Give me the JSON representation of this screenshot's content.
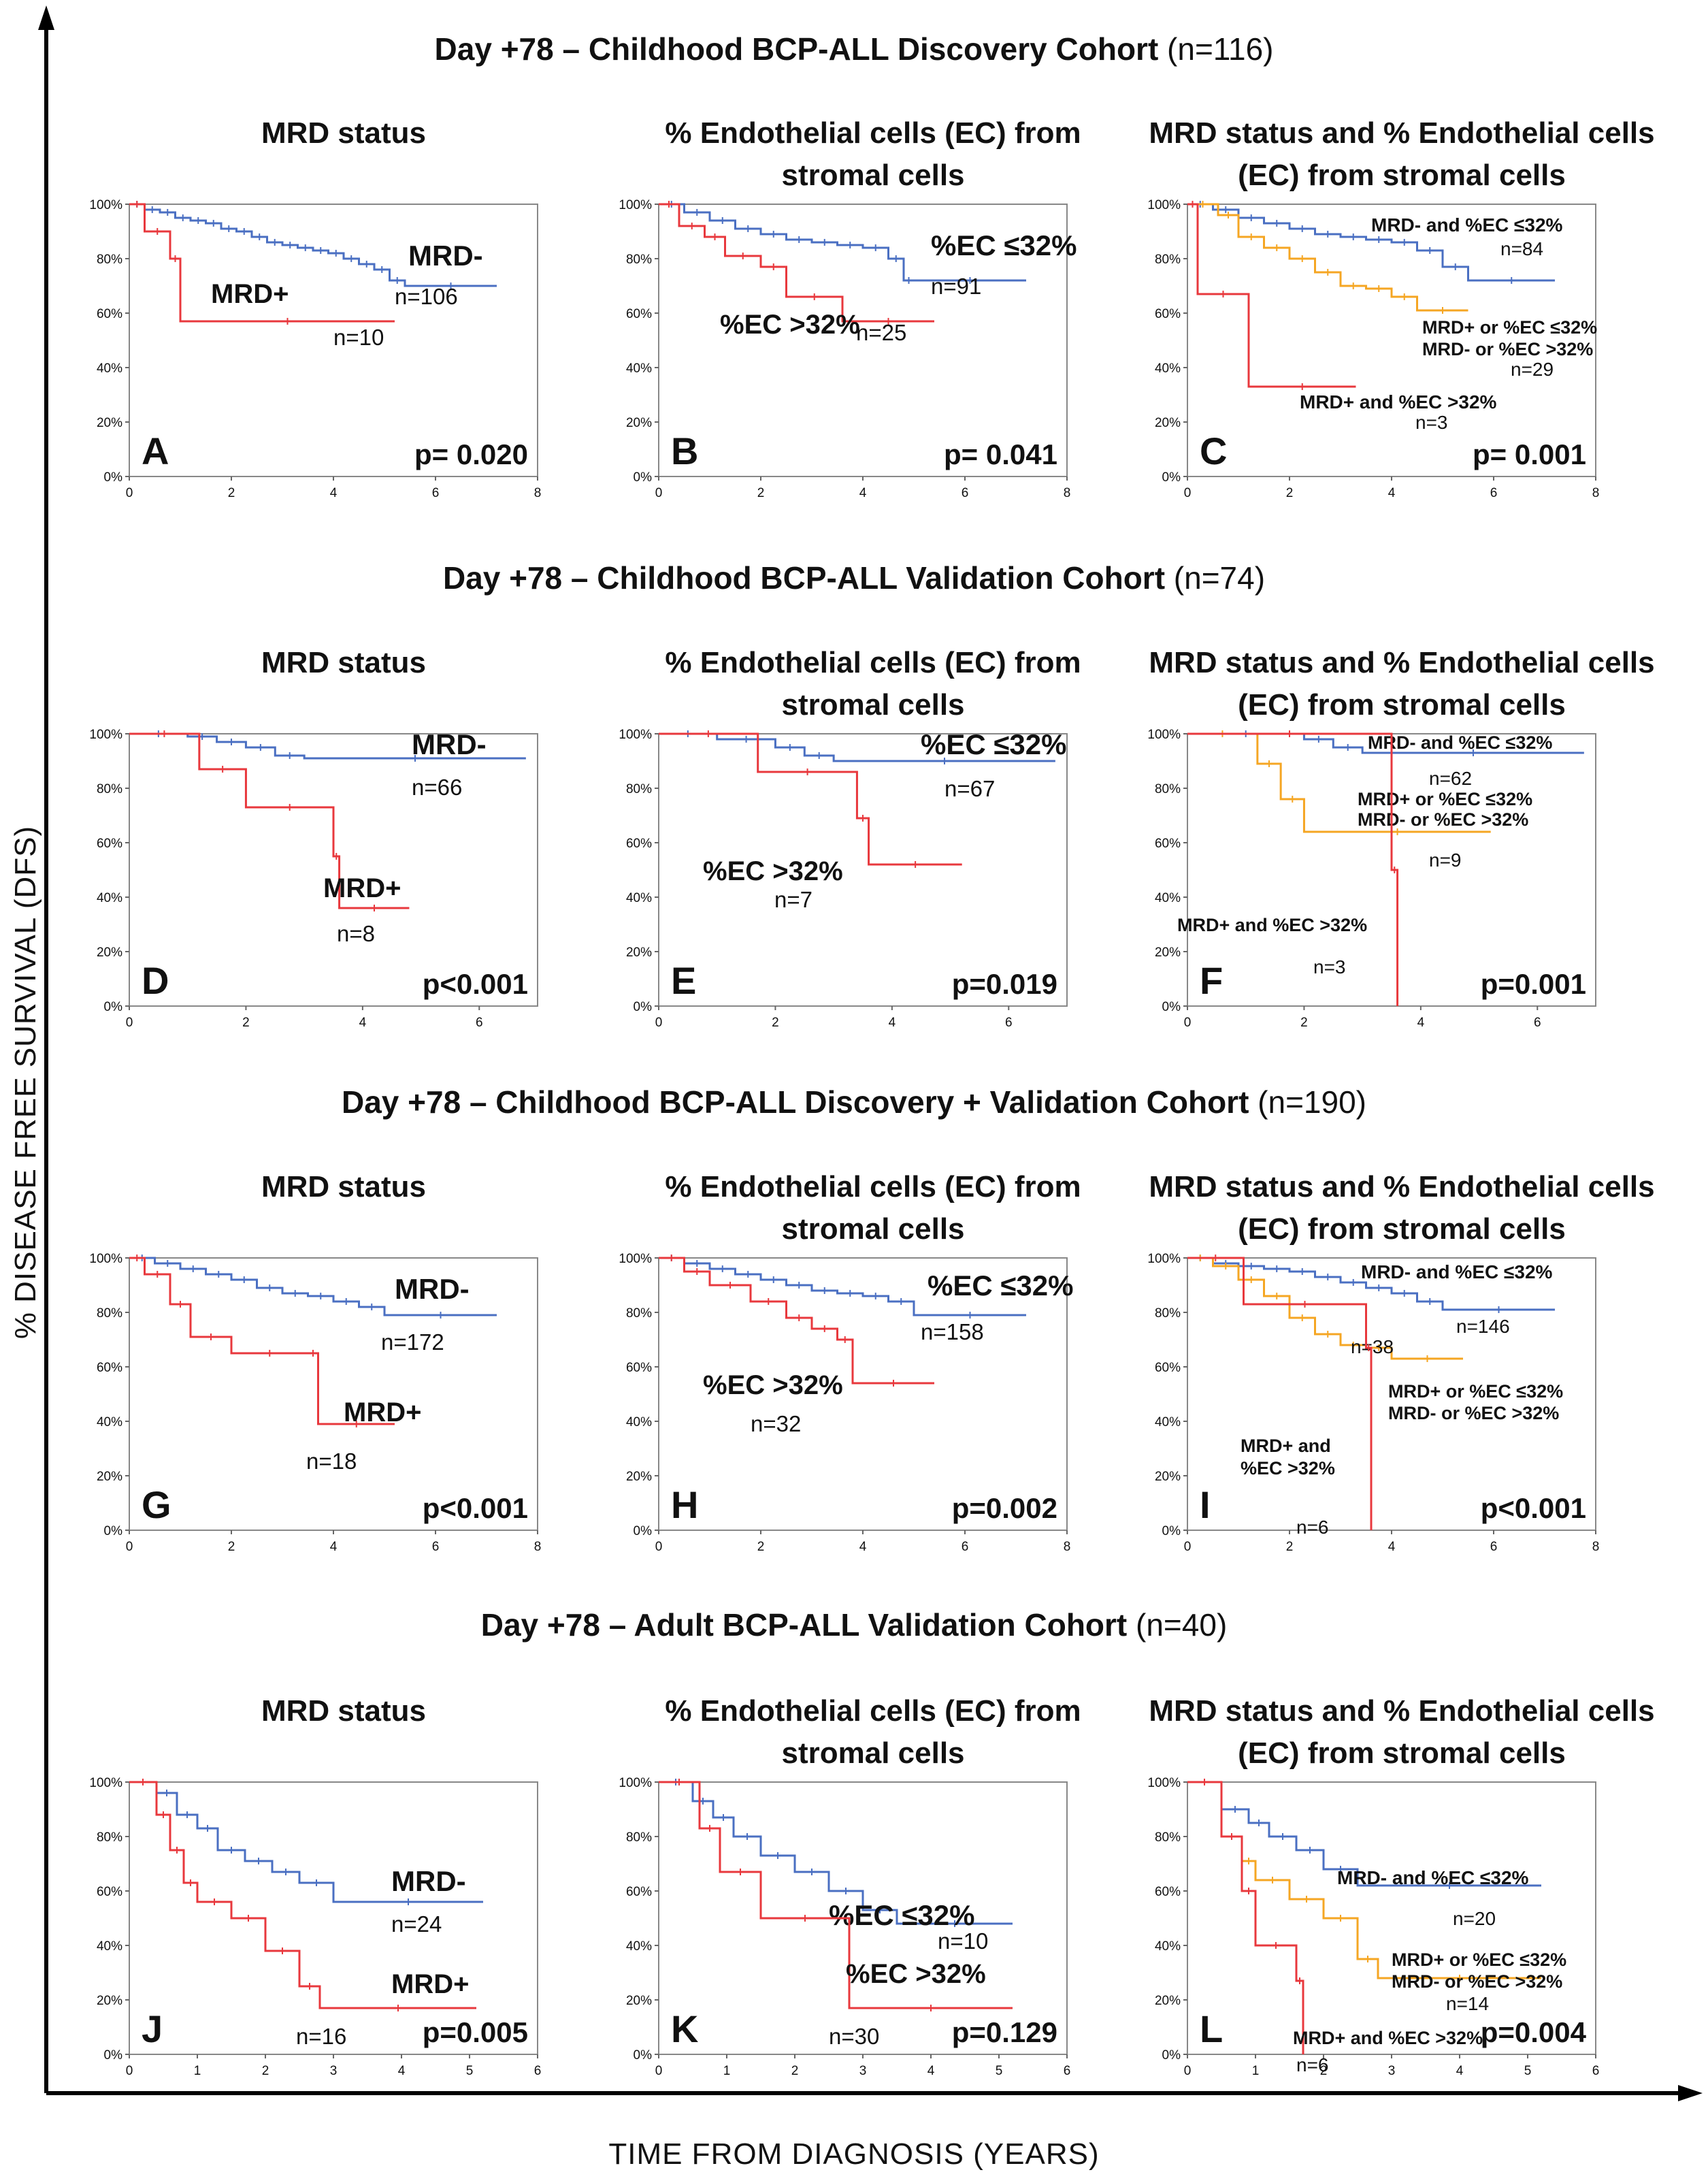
{
  "figure": {
    "y_axis_label": "% DISEASE FREE SURVIVAL (DFS)",
    "x_axis_label": "TIME FROM DIAGNOSIS (YEARS)"
  },
  "rows": [
    {
      "title": "Day +78 – Childhood  BCP-ALL Discovery Cohort",
      "n": "(n=116)"
    },
    {
      "title": "Day +78 – Childhood  BCP-ALL Validation Cohort",
      "n": "(n=74)"
    },
    {
      "title": "Day +78 – Childhood  BCP-ALL Discovery + Validation Cohort",
      "n": "(n=190)"
    },
    {
      "title": "Day +78 – Adult BCP-ALL Validation Cohort",
      "n": "(n=40)"
    }
  ],
  "colors": {
    "blue": "#4a6fc2",
    "red": "#e8383d",
    "orange": "#f5a623"
  },
  "chart_data": [
    {
      "type": "line",
      "panel": "A",
      "title": "MRD status",
      "p_value": "p= 0.020",
      "xlim": [
        0,
        8
      ],
      "ylim": [
        0,
        100
      ],
      "xticks": [
        "0",
        "2",
        "4",
        "6",
        "8"
      ],
      "yticks": [
        "0%",
        "20%",
        "40%",
        "60%",
        "80%",
        "100%"
      ],
      "series": [
        {
          "name": "MRD-",
          "n": "n=106",
          "color": "blue",
          "x": [
            0,
            0.3,
            0.6,
            0.9,
            1.2,
            1.5,
            1.8,
            2.1,
            2.4,
            2.7,
            3.0,
            3.3,
            3.6,
            3.9,
            4.2,
            4.5,
            4.8,
            5.1,
            5.4,
            7.2
          ],
          "y": [
            100,
            98,
            97,
            95,
            94,
            93,
            91,
            90,
            88,
            86,
            85,
            84,
            83,
            82,
            80,
            78,
            76,
            72,
            70,
            70
          ],
          "label": "MRD-",
          "count": "n=106"
        },
        {
          "name": "MRD+",
          "n": "n=10",
          "color": "red",
          "x": [
            0,
            0.3,
            0.8,
            1.0,
            5.2
          ],
          "y": [
            100,
            90,
            80,
            57,
            57
          ],
          "label": "MRD+",
          "count": "n=10"
        }
      ]
    },
    {
      "type": "line",
      "panel": "B",
      "title": "% Endothelial cells (EC) from stromal cells",
      "p_value": "p= 0.041",
      "xlim": [
        0,
        8
      ],
      "ylim": [
        0,
        100
      ],
      "xticks": [
        "0",
        "2",
        "4",
        "6",
        "8"
      ],
      "yticks": [
        "0%",
        "20%",
        "40%",
        "60%",
        "80%",
        "100%"
      ],
      "series": [
        {
          "name": "%EC ≤32%",
          "color": "blue",
          "x": [
            0,
            0.5,
            1.0,
            1.5,
            2.0,
            2.5,
            3.0,
            3.5,
            4.0,
            4.5,
            4.8,
            5.0,
            7.2
          ],
          "y": [
            100,
            97,
            94,
            91,
            89,
            87,
            86,
            85,
            84,
            80,
            72,
            72,
            72
          ],
          "label": "%EC ≤32%",
          "count": "n=91"
        },
        {
          "name": "%EC >32%",
          "color": "red",
          "x": [
            0,
            0.4,
            0.9,
            1.3,
            2.0,
            2.5,
            3.6,
            5.4
          ],
          "y": [
            100,
            92,
            88,
            81,
            77,
            66,
            57,
            57
          ],
          "label": "%EC >32%",
          "count": "n=25"
        }
      ]
    },
    {
      "type": "line",
      "panel": "C",
      "title": "MRD status and % Endothelial cells (EC) from stromal cells",
      "p_value": "p= 0.001",
      "xlim": [
        0,
        8
      ],
      "ylim": [
        0,
        100
      ],
      "xticks": [
        "0",
        "2",
        "4",
        "6",
        "8"
      ],
      "yticks": [
        "0%",
        "20%",
        "40%",
        "60%",
        "80%",
        "100%"
      ],
      "series": [
        {
          "name": "MRD- and %EC ≤32%",
          "color": "blue",
          "x": [
            0,
            0.5,
            1.0,
            1.5,
            2.0,
            2.5,
            3.0,
            3.5,
            4.0,
            4.5,
            5.0,
            5.5,
            7.2
          ],
          "y": [
            100,
            98,
            95,
            93,
            91,
            89,
            88,
            87,
            86,
            83,
            77,
            72,
            72
          ],
          "label": "MRD- and %EC ≤32%",
          "count": "n=84"
        },
        {
          "name": "MRD+ or %EC ≤32% / MRD- or %EC >32%",
          "color": "orange",
          "x": [
            0,
            0.6,
            1.0,
            1.5,
            2.0,
            2.5,
            3.0,
            3.5,
            4.0,
            4.5,
            5.5
          ],
          "y": [
            100,
            96,
            88,
            84,
            80,
            75,
            70,
            69,
            66,
            61,
            61
          ],
          "label": "MRD+ or %EC ≤32%",
          "label2": "MRD- or %EC >32%",
          "count": "n=29"
        },
        {
          "name": "MRD+ and %EC >32%",
          "color": "red",
          "x": [
            0,
            0.2,
            1.2,
            3.3
          ],
          "y": [
            100,
            67,
            33,
            33
          ],
          "label": "MRD+ and %EC >32%",
          "count": "n=3"
        }
      ]
    },
    {
      "type": "line",
      "panel": "D",
      "title": "MRD status",
      "p_value": "p<0.001",
      "xlim": [
        0,
        7
      ],
      "ylim": [
        0,
        100
      ],
      "xticks": [
        "0",
        "2",
        "4",
        "6"
      ],
      "yticks": [
        "0%",
        "20%",
        "40%",
        "60%",
        "80%",
        "100%"
      ],
      "series": [
        {
          "name": "MRD-",
          "color": "blue",
          "x": [
            0,
            1.0,
            1.5,
            2.0,
            2.5,
            3.0,
            6.8
          ],
          "y": [
            100,
            99,
            97,
            95,
            92,
            91,
            91
          ],
          "label": "MRD-",
          "count": "n=66"
        },
        {
          "name": "MRD+",
          "color": "red",
          "x": [
            0,
            1.2,
            2.0,
            3.5,
            3.6,
            4.8
          ],
          "y": [
            100,
            87,
            73,
            55,
            36,
            36
          ],
          "label": "MRD+",
          "count": "n=8"
        }
      ]
    },
    {
      "type": "line",
      "panel": "E",
      "title": "% Endothelial cells (EC) from stromal cells",
      "p_value": "p=0.019",
      "xlim": [
        0,
        7
      ],
      "ylim": [
        0,
        100
      ],
      "xticks": [
        "0",
        "2",
        "4",
        "6"
      ],
      "yticks": [
        "0%",
        "20%",
        "40%",
        "60%",
        "80%",
        "100%"
      ],
      "series": [
        {
          "name": "%EC ≤32%",
          "color": "blue",
          "x": [
            0,
            1.0,
            2.0,
            2.5,
            3.0,
            6.8
          ],
          "y": [
            100,
            98,
            95,
            92,
            90,
            90
          ],
          "label": "%EC ≤32%",
          "count": "n=67"
        },
        {
          "name": "%EC >32%",
          "color": "red",
          "x": [
            0,
            1.7,
            3.4,
            3.6,
            5.2
          ],
          "y": [
            100,
            86,
            69,
            52,
            52
          ],
          "label": "%EC >32%",
          "count": "n=7"
        }
      ]
    },
    {
      "type": "line",
      "panel": "F",
      "title": "MRD status and % Endothelial cells (EC) from stromal cells",
      "p_value": "p=0.001",
      "xlim": [
        0,
        7
      ],
      "ylim": [
        0,
        100
      ],
      "xticks": [
        "0",
        "2",
        "4",
        "6"
      ],
      "yticks": [
        "0%",
        "20%",
        "40%",
        "60%",
        "80%",
        "100%"
      ],
      "series": [
        {
          "name": "MRD- and %EC ≤32%",
          "color": "blue",
          "x": [
            0,
            2.0,
            2.5,
            3.0,
            6.8
          ],
          "y": [
            100,
            98,
            95,
            93,
            93
          ],
          "label": "MRD- and %EC ≤32%",
          "count": "n=62"
        },
        {
          "name": "MRD+ or %EC ≤32% / MRD- or %EC >32%",
          "color": "orange",
          "x": [
            0,
            1.2,
            1.6,
            2.0,
            5.2
          ],
          "y": [
            100,
            89,
            76,
            64,
            64
          ],
          "label": "MRD+ or %EC ≤32%",
          "label2": "MRD- or %EC >32%",
          "count": "n=9"
        },
        {
          "name": "MRD+ and %EC >32%",
          "color": "red",
          "x": [
            0,
            3.5,
            3.6
          ],
          "y": [
            100,
            50,
            0
          ],
          "label": "MRD+ and %EC >32%",
          "count": "n=3"
        }
      ]
    },
    {
      "type": "line",
      "panel": "G",
      "title": "MRD status",
      "p_value": "p<0.001",
      "xlim": [
        0,
        8
      ],
      "ylim": [
        0,
        100
      ],
      "xticks": [
        "0",
        "2",
        "4",
        "6",
        "8"
      ],
      "yticks": [
        "0%",
        "20%",
        "40%",
        "60%",
        "80%",
        "100%"
      ],
      "series": [
        {
          "name": "MRD-",
          "color": "blue",
          "x": [
            0,
            0.5,
            1.0,
            1.5,
            2.0,
            2.5,
            3.0,
            3.5,
            4.0,
            4.5,
            5.0,
            7.2
          ],
          "y": [
            100,
            98,
            96,
            94,
            92,
            89,
            87,
            86,
            84,
            82,
            79,
            79
          ],
          "label": "MRD-",
          "count": "n=172"
        },
        {
          "name": "MRD+",
          "color": "red",
          "x": [
            0,
            0.3,
            0.8,
            1.2,
            2.0,
            3.5,
            3.7,
            5.2
          ],
          "y": [
            100,
            94,
            83,
            71,
            65,
            65,
            39,
            39
          ],
          "label": "MRD+",
          "count": "n=18"
        }
      ]
    },
    {
      "type": "line",
      "panel": "H",
      "title": "% Endothelial cells (EC) from stromal cells",
      "p_value": "p=0.002",
      "xlim": [
        0,
        8
      ],
      "ylim": [
        0,
        100
      ],
      "xticks": [
        "0",
        "2",
        "4",
        "6",
        "8"
      ],
      "yticks": [
        "0%",
        "20%",
        "40%",
        "60%",
        "80%",
        "100%"
      ],
      "series": [
        {
          "name": "%EC ≤32%",
          "color": "blue",
          "x": [
            0,
            0.5,
            1.0,
            1.5,
            2.0,
            2.5,
            3.0,
            3.5,
            4.0,
            4.5,
            5.0,
            7.2
          ],
          "y": [
            100,
            98,
            96,
            94,
            92,
            90,
            88,
            87,
            86,
            84,
            79,
            79
          ],
          "label": "%EC ≤32%",
          "count": "n=158"
        },
        {
          "name": "%EC >32%",
          "color": "red",
          "x": [
            0,
            0.5,
            1.0,
            1.8,
            2.5,
            3.0,
            3.5,
            3.8,
            5.4
          ],
          "y": [
            100,
            95,
            90,
            84,
            78,
            74,
            70,
            54,
            54
          ],
          "label": "%EC >32%",
          "count": "n=32"
        }
      ]
    },
    {
      "type": "line",
      "panel": "I",
      "title": "MRD status and % Endothelial cells (EC) from stromal cells",
      "p_value": "p<0.001",
      "xlim": [
        0,
        8
      ],
      "ylim": [
        0,
        100
      ],
      "xticks": [
        "0",
        "2",
        "4",
        "6",
        "8"
      ],
      "yticks": [
        "0%",
        "20%",
        "40%",
        "60%",
        "80%",
        "100%"
      ],
      "series": [
        {
          "name": "MRD- and %EC ≤32%",
          "color": "blue",
          "x": [
            0,
            0.5,
            1.0,
            1.5,
            2.0,
            2.5,
            3.0,
            3.5,
            4.0,
            4.5,
            5.0,
            7.2
          ],
          "y": [
            100,
            98,
            97,
            96,
            95,
            93,
            91,
            89,
            87,
            84,
            81,
            81
          ],
          "label": "MRD- and %EC ≤32%",
          "count": "n=146"
        },
        {
          "name": "MRD+ or %EC ≤32% / MRD- or %EC >32%",
          "color": "orange",
          "x": [
            0,
            0.5,
            1.0,
            1.5,
            2.0,
            2.5,
            3.0,
            3.5,
            4.0,
            5.4
          ],
          "y": [
            100,
            97,
            92,
            86,
            78,
            72,
            68,
            67,
            63,
            63
          ],
          "label": "MRD+ or %EC ≤32%",
          "label2": "MRD- or %EC >32%",
          "count": "n=38"
        },
        {
          "name": "MRD+ and %EC >32%",
          "color": "red",
          "x": [
            0,
            1.1,
            3.5,
            3.6
          ],
          "y": [
            100,
            83,
            67,
            0
          ],
          "label": "MRD+ and",
          "label2": "%EC >32%",
          "count": "n=6"
        }
      ]
    },
    {
      "type": "line",
      "panel": "J",
      "title": "MRD status",
      "p_value": "p=0.005",
      "xlim": [
        0,
        6
      ],
      "ylim": [
        0,
        100
      ],
      "xticks": [
        "0",
        "1",
        "2",
        "3",
        "4",
        "5",
        "6"
      ],
      "yticks": [
        "0%",
        "20%",
        "40%",
        "60%",
        "80%",
        "100%"
      ],
      "series": [
        {
          "name": "MRD-",
          "color": "blue",
          "x": [
            0,
            0.4,
            0.7,
            1.0,
            1.3,
            1.7,
            2.1,
            2.5,
            3.0,
            5.2
          ],
          "y": [
            100,
            96,
            88,
            83,
            75,
            71,
            67,
            63,
            56,
            56
          ],
          "label": "MRD-",
          "count": "n=24"
        },
        {
          "name": "MRD+",
          "color": "red",
          "x": [
            0,
            0.4,
            0.6,
            0.8,
            1.0,
            1.5,
            2.0,
            2.5,
            2.8,
            5.1
          ],
          "y": [
            100,
            88,
            75,
            63,
            56,
            50,
            38,
            25,
            17,
            17
          ],
          "label": "MRD+",
          "count": "n=16"
        }
      ]
    },
    {
      "type": "line",
      "panel": "K",
      "title": "% Endothelial cells (EC) from stromal cells",
      "p_value": "p=0.129",
      "xlim": [
        0,
        6
      ],
      "ylim": [
        0,
        100
      ],
      "xticks": [
        "0",
        "1",
        "2",
        "3",
        "4",
        "5",
        "6"
      ],
      "yticks": [
        "0%",
        "20%",
        "40%",
        "60%",
        "80%",
        "100%"
      ],
      "series": [
        {
          "name": "%EC ≤32%",
          "color": "blue",
          "x": [
            0,
            0.5,
            0.8,
            1.1,
            1.5,
            2.0,
            2.5,
            3.0,
            3.5,
            5.2
          ],
          "y": [
            100,
            93,
            87,
            80,
            73,
            67,
            60,
            53,
            48,
            48
          ],
          "label": "%EC ≤32%",
          "count": "n=10"
        },
        {
          "name": "%EC >32%",
          "color": "red",
          "x": [
            0,
            0.6,
            0.9,
            1.5,
            2.8,
            5.2
          ],
          "y": [
            100,
            83,
            67,
            50,
            17,
            17
          ],
          "label": "%EC >32%",
          "count": "n=30"
        }
      ]
    },
    {
      "type": "line",
      "panel": "L",
      "title": "MRD status and % Endothelial cells (EC) from stromal cells",
      "p_value": "p=0.004",
      "xlim": [
        0,
        6
      ],
      "ylim": [
        0,
        100
      ],
      "xticks": [
        "0",
        "1",
        "2",
        "3",
        "4",
        "5",
        "6"
      ],
      "yticks": [
        "0%",
        "20%",
        "40%",
        "60%",
        "80%",
        "100%"
      ],
      "series": [
        {
          "name": "MRD- and %EC ≤32%",
          "color": "blue",
          "x": [
            0,
            0.5,
            0.9,
            1.2,
            1.6,
            2.0,
            2.5,
            5.2
          ],
          "y": [
            100,
            90,
            85,
            80,
            75,
            68,
            62,
            62
          ],
          "label": "MRD- and %EC ≤32%",
          "count": "n=20"
        },
        {
          "name": "MRD+ or %EC ≤32% / MRD- or %EC >32%",
          "color": "orange",
          "x": [
            0,
            0.5,
            0.8,
            1.0,
            1.5,
            2.0,
            2.5,
            2.8,
            5.2
          ],
          "y": [
            100,
            80,
            71,
            64,
            57,
            50,
            35,
            28,
            28
          ],
          "label": "MRD+ or %EC ≤32%",
          "label2": "MRD- or %EC >32%",
          "count": "n=14"
        },
        {
          "name": "MRD+ and %EC >32%",
          "color": "red",
          "x": [
            0,
            0.5,
            0.8,
            1.0,
            1.6,
            1.7
          ],
          "y": [
            100,
            80,
            60,
            40,
            27,
            0
          ],
          "label": "MRD+ and %EC >32%",
          "count": "n=6"
        }
      ]
    }
  ]
}
